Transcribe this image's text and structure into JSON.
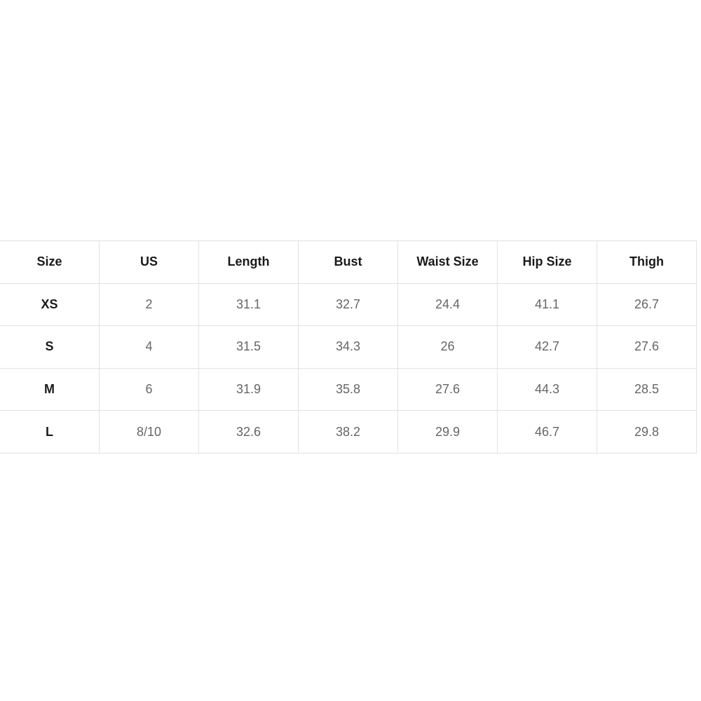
{
  "table": {
    "headers": [
      "Size",
      "US",
      "Length",
      "Bust",
      "Waist Size",
      "Hip Size",
      "Thigh"
    ],
    "rows": [
      [
        "XS",
        "2",
        "31.1",
        "32.7",
        "24.4",
        "41.1",
        "26.7"
      ],
      [
        "S",
        "4",
        "31.5",
        "34.3",
        "26",
        "42.7",
        "27.6"
      ],
      [
        "M",
        "6",
        "31.9",
        "35.8",
        "27.6",
        "44.3",
        "28.5"
      ],
      [
        "L",
        "8/10",
        "32.6",
        "38.2",
        "29.9",
        "46.7",
        "29.8"
      ]
    ]
  }
}
